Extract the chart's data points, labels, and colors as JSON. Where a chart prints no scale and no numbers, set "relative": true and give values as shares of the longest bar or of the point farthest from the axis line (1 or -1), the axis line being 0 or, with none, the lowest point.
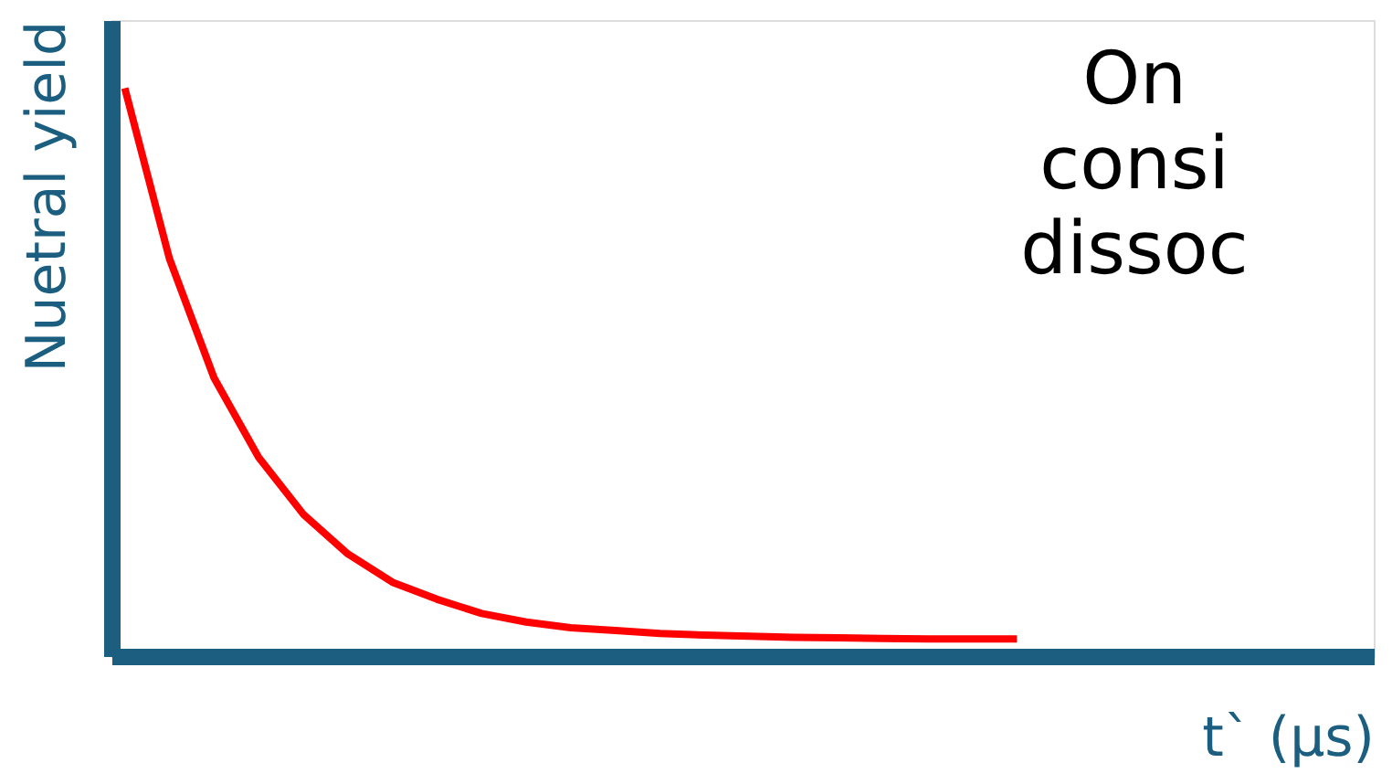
{
  "chart_data": {
    "type": "line",
    "relative": true,
    "xlabel": "t` (μs)",
    "ylabel": "Nuetral yield",
    "categories": [
      null,
      null,
      null,
      null,
      null,
      null,
      null,
      null,
      null,
      null,
      null,
      null,
      null,
      null,
      null,
      null,
      null,
      null,
      null,
      null,
      null,
      null,
      null,
      null,
      null,
      null,
      null,
      null,
      null
    ],
    "series": [
      {
        "color": "#ff0000",
        "values": [
          1,
          0.7,
          0.49,
          0.35,
          0.25,
          0.18,
          0.13,
          0.1,
          0.075,
          0.06,
          0.05,
          0.045,
          0.04,
          0.037,
          0.035,
          0.033,
          0.032,
          0.031,
          0.03,
          0.03,
          0.03,
          null,
          null,
          null,
          null,
          null,
          null,
          null,
          null
        ]
      }
    ],
    "annotations": [
      "On",
      "consi",
      "dissoc"
    ],
    "tick_labels": false,
    "grid": false,
    "marker": "none",
    "line_style": "solid"
  }
}
